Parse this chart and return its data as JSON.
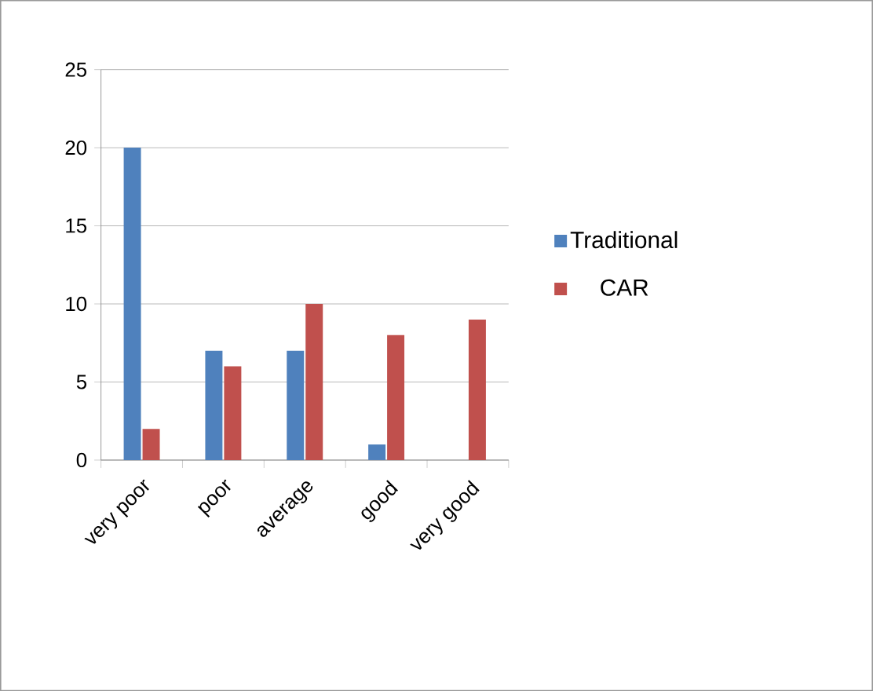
{
  "chart_data": {
    "type": "bar",
    "categories": [
      "very poor",
      "poor",
      "average",
      "good",
      "very good"
    ],
    "series": [
      {
        "name": "Traditional",
        "color": "#4f81bd",
        "values": [
          20,
          7,
          7,
          1,
          0
        ]
      },
      {
        "name": "CAR",
        "color": "#c0504d",
        "values": [
          2,
          6,
          10,
          8,
          9
        ]
      }
    ],
    "ylim": [
      0,
      25
    ],
    "yticks": [
      0,
      5,
      10,
      15,
      20,
      25
    ],
    "grid": "y",
    "legend": "right"
  }
}
